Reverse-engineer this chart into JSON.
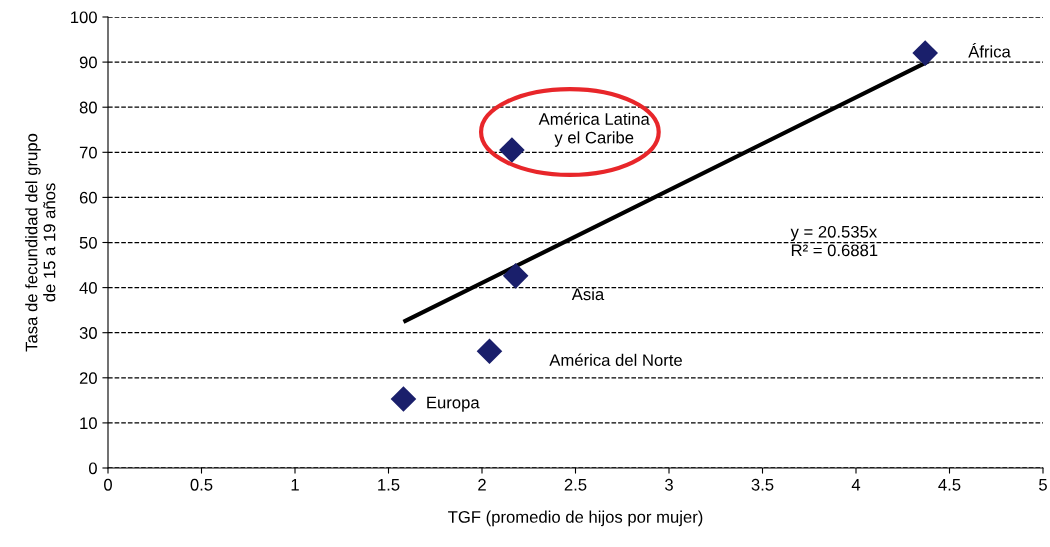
{
  "chart_data": {
    "type": "scatter",
    "xlabel": "TGF (promedio de hijos por mujer)",
    "ylabel": "Tasa de fecundidad del grupo\nde 15 a 19 años",
    "xlim": [
      0,
      5
    ],
    "ylim": [
      0,
      100
    ],
    "xticks": [
      0,
      0.5,
      1,
      1.5,
      2,
      2.5,
      3,
      3.5,
      4,
      4.5,
      5
    ],
    "yticks": [
      0,
      10,
      20,
      30,
      40,
      50,
      60,
      70,
      80,
      90,
      100
    ],
    "grid": "y",
    "series": [
      {
        "color": "#1a1f6b",
        "marker": "diamond",
        "x": [
          1.58,
          2.04,
          2.18,
          2.16,
          4.37
        ],
        "values": [
          15.3,
          25.9,
          42.6,
          70.5,
          92.0
        ]
      },
      {
        "type": "line",
        "color": "#000000",
        "x": [
          1.59,
          4.38
        ],
        "values": [
          32.6,
          90.0
        ]
      }
    ],
    "annotations": [
      "Europa",
      "América del Norte",
      "Asia",
      "América Latina\ny el Caribe",
      "África",
      "y = 20.535x\nR² = 0.6881"
    ]
  }
}
